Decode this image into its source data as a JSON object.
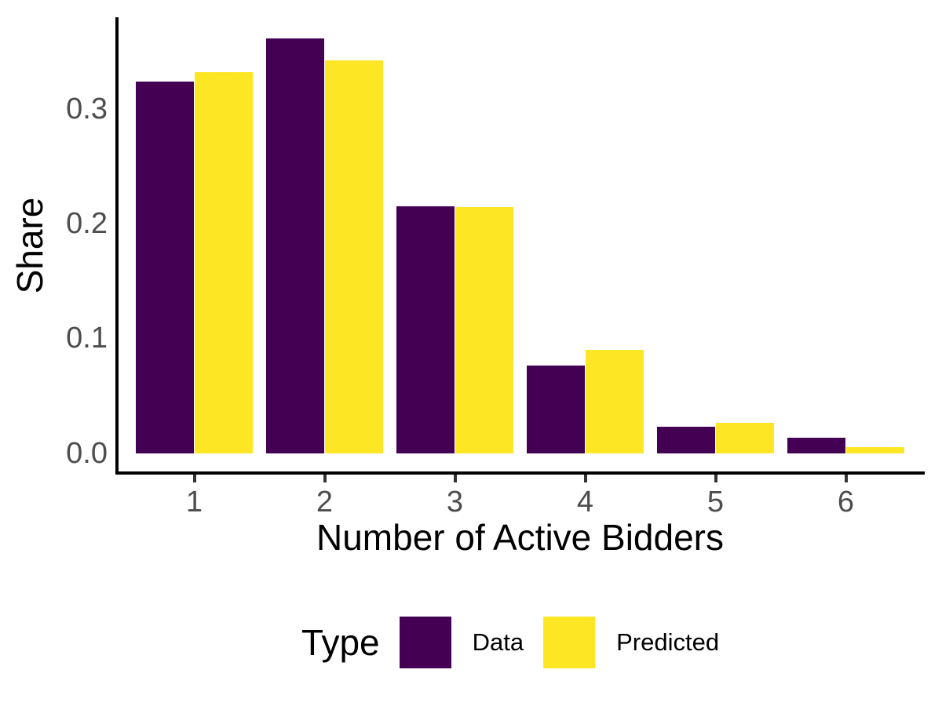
{
  "chart_data": {
    "type": "bar",
    "title": "",
    "xlabel": "Number of Active Bidders",
    "ylabel": "Share",
    "categories": [
      "1",
      "2",
      "3",
      "4",
      "5",
      "6"
    ],
    "series": [
      {
        "name": "Data",
        "color": "#440154",
        "values": [
          0.324,
          0.361,
          0.215,
          0.076,
          0.023,
          0.013
        ]
      },
      {
        "name": "Predicted",
        "color": "#FDE725",
        "values": [
          0.332,
          0.342,
          0.214,
          0.09,
          0.026,
          0.005
        ]
      }
    ],
    "ylim": [
      0,
      0.38
    ],
    "yticks": [
      0.0,
      0.1,
      0.2,
      0.3
    ],
    "ytick_labels": [
      "0.0",
      "0.1",
      "0.2",
      "0.3"
    ],
    "grid": false,
    "legend": {
      "title": "Type",
      "position": "bottom"
    },
    "colors": {
      "axis_line": "#000000",
      "tick_mark": "#333333",
      "tick_text": "#4d4d4d",
      "title_text": "#000000",
      "background": "#ffffff"
    }
  }
}
